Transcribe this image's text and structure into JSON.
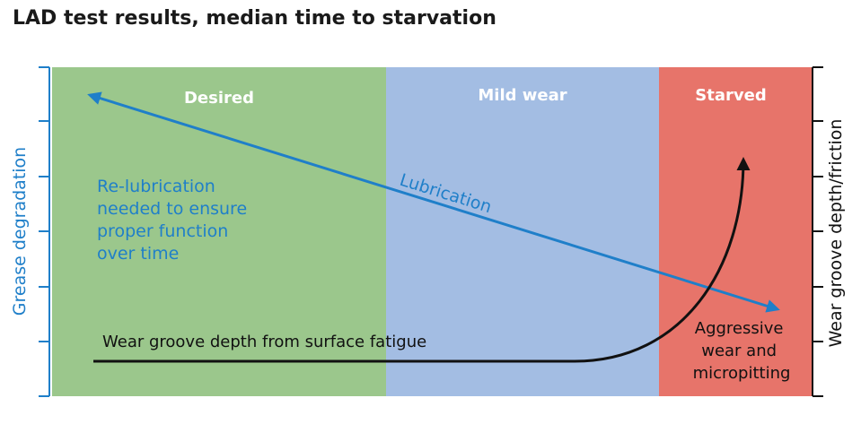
{
  "title": "LAD test results, median time to starvation",
  "zones": [
    {
      "label": "Desired",
      "color": "#9bc78c"
    },
    {
      "label": "Mild wear",
      "color": "#a3bde3"
    },
    {
      "label": "Starved",
      "color": "#e7746a"
    }
  ],
  "axes": {
    "left_label": "Grease degradation",
    "left_color": "#1f7fc9",
    "right_label": "Wear groove depth/friction",
    "right_color": "#111111"
  },
  "annotations": {
    "relubrication": [
      "Re-lubrication",
      "needed to ensure",
      "proper function",
      "over time"
    ],
    "lubrication_arrow": "Lubrication",
    "wear_groove_curve": "Wear groove depth from surface fatigue",
    "aggressive": [
      "Aggressive",
      "wear and",
      "micropitting"
    ]
  },
  "colors": {
    "lubrication_arrow": "#1f7fc9",
    "wear_curve": "#111111"
  }
}
